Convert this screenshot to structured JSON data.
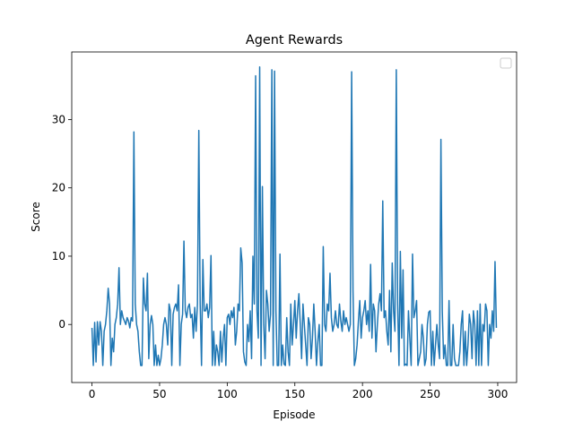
{
  "chart_data": {
    "type": "line",
    "title": "Agent Rewards",
    "x_label": "Episode",
    "y_label": "Score",
    "x": [
      0,
      1,
      2,
      3,
      4,
      5,
      6,
      7,
      8,
      9,
      10,
      11,
      12,
      13,
      14,
      15,
      16,
      17,
      18,
      19,
      20,
      21,
      22,
      23,
      24,
      25,
      26,
      27,
      28,
      29,
      30,
      31,
      32,
      33,
      34,
      35,
      36,
      37,
      38,
      39,
      40,
      41,
      42,
      43,
      44,
      45,
      46,
      47,
      48,
      49,
      50,
      51,
      52,
      53,
      54,
      55,
      56,
      57,
      58,
      59,
      60,
      61,
      62,
      63,
      64,
      65,
      66,
      67,
      68,
      69,
      70,
      71,
      72,
      73,
      74,
      75,
      76,
      77,
      78,
      79,
      80,
      81,
      82,
      83,
      84,
      85,
      86,
      87,
      88,
      89,
      90,
      91,
      92,
      93,
      94,
      95,
      96,
      97,
      98,
      99,
      100,
      101,
      102,
      103,
      104,
      105,
      106,
      107,
      108,
      109,
      110,
      111,
      112,
      113,
      114,
      115,
      116,
      117,
      118,
      119,
      120,
      121,
      122,
      123,
      124,
      125,
      126,
      127,
      128,
      129,
      130,
      131,
      132,
      133,
      134,
      135,
      136,
      137,
      138,
      139,
      140,
      141,
      142,
      143,
      144,
      145,
      146,
      147,
      148,
      149,
      150,
      151,
      152,
      153,
      154,
      155,
      156,
      157,
      158,
      159,
      160,
      161,
      162,
      163,
      164,
      165,
      166,
      167,
      168,
      169,
      170,
      171,
      172,
      173,
      174,
      175,
      176,
      177,
      178,
      179,
      180,
      181,
      182,
      183,
      184,
      185,
      186,
      187,
      188,
      189,
      190,
      191,
      192,
      193,
      194,
      195,
      196,
      197,
      198,
      199,
      200,
      201,
      202,
      203,
      204,
      205,
      206,
      207,
      208,
      209,
      210,
      211,
      212,
      213,
      214,
      215,
      216,
      217,
      218,
      219,
      220,
      221,
      222,
      223,
      224,
      225,
      226,
      227,
      228,
      229,
      230,
      231,
      232,
      233,
      234,
      235,
      236,
      237,
      238,
      239,
      240,
      241,
      242,
      243,
      244,
      245,
      246,
      247,
      248,
      249,
      250,
      251,
      252,
      253,
      254,
      255,
      256,
      257,
      258,
      259,
      260,
      261,
      262,
      263,
      264,
      265,
      266,
      267,
      268,
      269,
      270,
      271,
      272,
      273,
      274,
      275,
      276,
      277,
      278,
      279,
      280,
      281,
      282,
      283,
      284,
      285,
      286,
      287,
      288,
      289,
      290,
      291,
      292,
      293,
      294,
      295,
      296,
      297,
      298,
      299
    ],
    "series": [
      {
        "color": "#1f77b4",
        "values": [
          -0.5,
          -6,
          0.3,
          -5.5,
          0.4,
          -3,
          0.4,
          -1,
          -6,
          -1,
          0,
          2,
          5.3,
          3,
          -6,
          -2,
          -4,
          0,
          1,
          3,
          8.3,
          0,
          2,
          1,
          0.5,
          0,
          1,
          0.5,
          -0.5,
          1,
          0.5,
          28.2,
          3,
          0,
          -1,
          -4,
          -6,
          -6,
          6.8,
          3,
          2,
          7.5,
          -5,
          0,
          1.3,
          0,
          -6,
          -3,
          -6,
          -4.5,
          -6,
          -5,
          -3,
          0,
          1,
          0,
          -3,
          3,
          2,
          -6,
          1.5,
          2.5,
          3,
          2,
          5.8,
          -6,
          0,
          1.5,
          12.2,
          2,
          1,
          2.5,
          3,
          1,
          1.5,
          -2,
          2.5,
          -1,
          3,
          28.4,
          3,
          -6,
          9.5,
          2,
          2,
          3,
          1,
          2.5,
          10.1,
          -6,
          -1,
          -6,
          -3,
          -4,
          -6,
          -1,
          -5.5,
          -2,
          0,
          -6,
          1,
          1.5,
          0,
          2,
          1,
          2.5,
          -3,
          -1,
          3,
          2,
          11.2,
          9,
          -4,
          -5.5,
          -6,
          0,
          -2.5,
          2,
          -5,
          10,
          3,
          36.4,
          2,
          -2,
          37.7,
          -6,
          20.2,
          0,
          -5,
          5,
          3,
          -1,
          1.5,
          37.3,
          -6,
          37.1,
          2,
          -6,
          -6,
          10.3,
          -6,
          -3,
          -5.8,
          -6,
          1,
          -4,
          -6,
          3,
          -3,
          0,
          3.5,
          -2,
          2,
          4.5,
          0,
          -5,
          3,
          0,
          -3,
          -6,
          1,
          0,
          -5,
          -2,
          3,
          -1,
          -6,
          -2.5,
          0,
          -6,
          -6,
          11.4,
          0,
          -1,
          3,
          2,
          7.5,
          1,
          -1,
          0,
          2,
          0,
          -0.5,
          3,
          0.5,
          -1,
          2,
          0,
          1,
          0,
          -1,
          0,
          37,
          5,
          -6,
          -5,
          -3,
          0.5,
          3.5,
          -2,
          1,
          2,
          3.5,
          0,
          2,
          -1,
          8.8,
          -2,
          3,
          2,
          -4,
          0,
          3,
          4.5,
          2,
          18.1,
          1,
          2,
          -1,
          -3,
          5,
          -4,
          9,
          2,
          -1,
          37.3,
          3,
          -6,
          10.7,
          -2,
          8,
          -6,
          -5.8,
          -6,
          2,
          -2,
          -6,
          10.3,
          1,
          2,
          3.5,
          -6,
          -5,
          -4,
          0,
          -2,
          -6,
          -5,
          0,
          1.8,
          2,
          -6,
          -1,
          -6,
          -3,
          0,
          -3,
          -5,
          27.1,
          2,
          -5,
          -3,
          -6,
          -6,
          3.5,
          -6,
          -6,
          0,
          -5,
          -6,
          -6,
          -6,
          -4,
          0,
          2,
          -6,
          -1,
          -6,
          -3,
          1.5,
          0,
          -5,
          2,
          0,
          -6,
          2,
          -6,
          3,
          -6,
          0,
          -1,
          3,
          2,
          -6,
          0,
          -2,
          2,
          -1,
          9.2,
          -0.5
        ]
      }
    ],
    "xlim": [
      -14.95,
      313.95
    ],
    "xticks": [
      0,
      50,
      100,
      150,
      200,
      250,
      300
    ],
    "ylim": [
      -8.5,
      39.9
    ],
    "yticks": [
      0,
      10,
      20,
      30
    ]
  }
}
